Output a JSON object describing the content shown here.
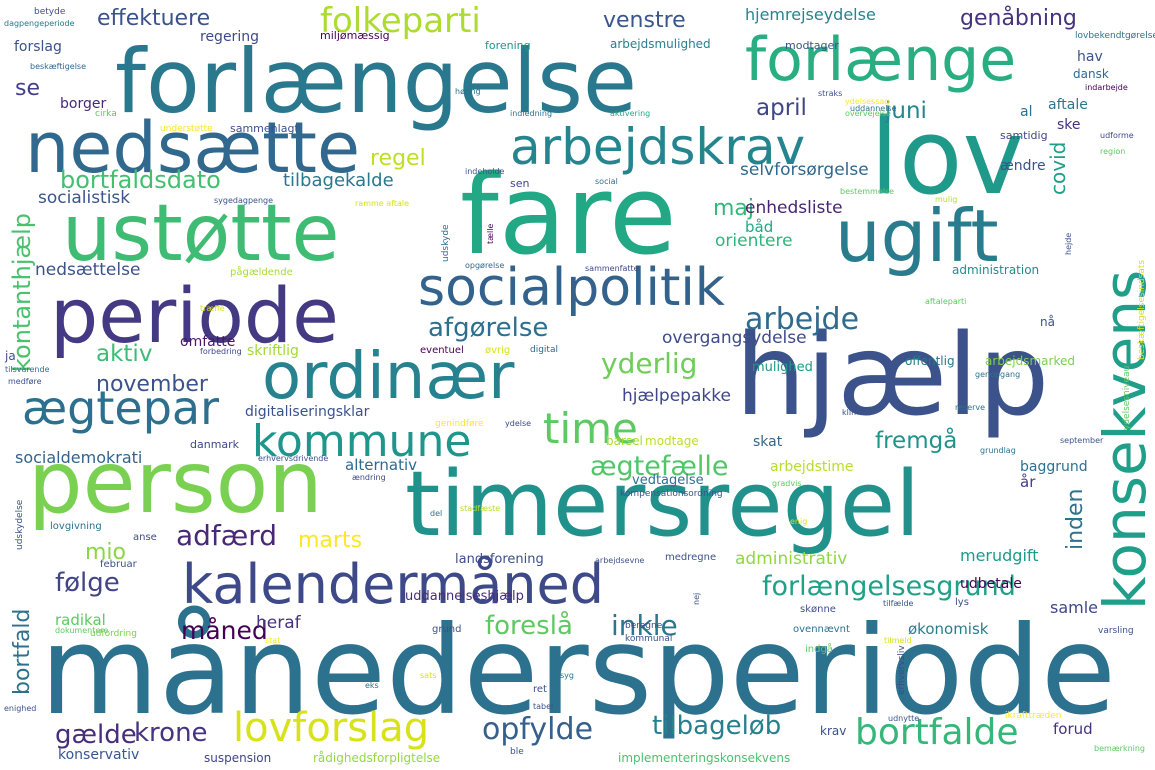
{
  "words": [
    {
      "text": "månedersperiode",
      "color": "#2c728e"
    },
    {
      "text": "forlængelse",
      "color": "#2a788e"
    },
    {
      "text": "fare",
      "color": "#22a884"
    },
    {
      "text": "timersregel",
      "color": "#21918c"
    },
    {
      "text": "hjælp",
      "color": "#3b528b"
    },
    {
      "text": "person",
      "color": "#7ad151"
    },
    {
      "text": "ustøtte",
      "color": "#3fbc73"
    },
    {
      "text": "lov",
      "color": "#1f9a8a"
    },
    {
      "text": "nedsætte",
      "color": "#31688e"
    },
    {
      "text": "periode",
      "color": "#443983"
    },
    {
      "text": "ugift",
      "color": "#287c8e"
    },
    {
      "text": "forlænge",
      "color": "#28ae80"
    },
    {
      "text": "ordinær",
      "color": "#26828e"
    },
    {
      "text": "socialpolitik",
      "color": "#33638d"
    },
    {
      "text": "kalendermåned",
      "color": "#3e4989"
    },
    {
      "text": "arbejdskrav",
      "color": "#25858e"
    },
    {
      "text": "konsekvens",
      "color": "#1f9e89"
    },
    {
      "text": "ægtepar",
      "color": "#2d708e"
    },
    {
      "text": "kommune",
      "color": "#1f968b"
    },
    {
      "text": "time",
      "color": "#5ec962"
    },
    {
      "text": "folkeparti",
      "color": "#addc30"
    },
    {
      "text": "lovforslag",
      "color": "#d8e219"
    },
    {
      "text": "bortfalde",
      "color": "#35b779"
    },
    {
      "text": "arbejde",
      "color": "#2f6b8e"
    },
    {
      "text": "opfylde",
      "color": "#355f8d"
    },
    {
      "text": "forlængelsesgrund",
      "color": "#1fa188"
    },
    {
      "text": "tilbageløb",
      "color": "#27808e"
    },
    {
      "text": "adfærd",
      "color": "#482878"
    },
    {
      "text": "afgørelse",
      "color": "#2e6f8e"
    },
    {
      "text": "yderlig",
      "color": "#6ece58"
    },
    {
      "text": "bortfaldsdato",
      "color": "#44bf70"
    },
    {
      "text": "kontanthjælp",
      "color": "#4ac16d"
    },
    {
      "text": "ægtefælle",
      "color": "#52c569"
    },
    {
      "text": "gælde",
      "color": "#472d7b"
    },
    {
      "text": "krone",
      "color": "#463480"
    },
    {
      "text": "følge",
      "color": "#414487"
    },
    {
      "text": "inkle",
      "color": "#2a768e"
    },
    {
      "text": "foreslå",
      "color": "#5ec962"
    },
    {
      "text": "måned",
      "color": "#440154"
    },
    {
      "text": "effektuere",
      "color": "#3b528b"
    },
    {
      "text": "genåbning",
      "color": "#46327e"
    },
    {
      "text": "venstre",
      "color": "#39568c"
    },
    {
      "text": "april",
      "color": "#404588"
    },
    {
      "text": "juni",
      "color": "#24868e"
    },
    {
      "text": "regel",
      "color": "#bddf26"
    },
    {
      "text": "maj",
      "color": "#35b779"
    },
    {
      "text": "aktiv",
      "color": "#3dbc74"
    },
    {
      "text": "november",
      "color": "#3b528b"
    },
    {
      "text": "marts",
      "color": "#fde725"
    },
    {
      "text": "mio",
      "color": "#8bd646"
    },
    {
      "text": "fremgå",
      "color": "#20928c"
    },
    {
      "text": "inden",
      "color": "#2c738e"
    },
    {
      "text": "bortfald",
      "color": "#2c728e"
    },
    {
      "text": "se",
      "color": "#433e85"
    },
    {
      "text": "covid",
      "color": "#1f9e89"
    },
    {
      "text": "tilbagekalde",
      "color": "#2a788e"
    },
    {
      "text": "socialistisk",
      "color": "#3a548c"
    },
    {
      "text": "nedsættelse",
      "color": "#3b528b"
    },
    {
      "text": "enhedsliste",
      "color": "#482475"
    },
    {
      "text": "orientere",
      "color": "#2fb47c"
    },
    {
      "text": "selvforsørgelse",
      "color": "#31688e"
    },
    {
      "text": "hjemrejseydelse",
      "color": "#25848e"
    },
    {
      "text": "overgangsydelse",
      "color": "#3e4a89"
    },
    {
      "text": "hjælpepakke",
      "color": "#404688"
    },
    {
      "text": "omfatte",
      "color": "#48186a"
    },
    {
      "text": "skriftlig",
      "color": "#a2da37"
    },
    {
      "text": "alternativ",
      "color": "#31688e"
    },
    {
      "text": "socialdemokrati",
      "color": "#33638d"
    },
    {
      "text": "digitaliseringsklar",
      "color": "#3b528b"
    },
    {
      "text": "administrativ",
      "color": "#8fd744"
    },
    {
      "text": "merudgift",
      "color": "#1f9a8a"
    },
    {
      "text": "landsforening",
      "color": "#3d4d8a"
    },
    {
      "text": "uddannelseshjælp",
      "color": "#472c7a"
    },
    {
      "text": "heraf",
      "color": "#46327e"
    },
    {
      "text": "radikal",
      "color": "#5ec962"
    },
    {
      "text": "økonomisk",
      "color": "#277f8e"
    },
    {
      "text": "samle",
      "color": "#404688"
    },
    {
      "text": "konservativ",
      "color": "#38588c"
    },
    {
      "text": "suspension",
      "color": "#404588"
    },
    {
      "text": "rådighedsforpligtelse",
      "color": "#95d840"
    },
    {
      "text": "implementeringskonsekvens",
      "color": "#4ac16d"
    },
    {
      "text": "forud",
      "color": "#46337f"
    },
    {
      "text": "krav",
      "color": "#3b528b"
    },
    {
      "text": "udbetale",
      "color": "#440154"
    },
    {
      "text": "arbejdstime",
      "color": "#b5de2b"
    },
    {
      "text": "baggrund",
      "color": "#2d708e"
    },
    {
      "text": "år",
      "color": "#433e85"
    },
    {
      "text": "skat",
      "color": "#31688e"
    },
    {
      "text": "vedtagelse",
      "color": "#2d708e"
    },
    {
      "text": "modtage",
      "color": "#bddf26"
    },
    {
      "text": "barsel",
      "color": "#a8db34"
    },
    {
      "text": "danmark",
      "color": "#3e4989"
    },
    {
      "text": "mulighed",
      "color": "#1f998a"
    },
    {
      "text": "offentlig",
      "color": "#2a788e"
    },
    {
      "text": "arbejdsmarked",
      "color": "#7ad151"
    },
    {
      "text": "nå",
      "color": "#3b528b"
    },
    {
      "text": "administration",
      "color": "#238a8d"
    },
    {
      "text": "båd",
      "color": "#22a884"
    },
    {
      "text": "ændre",
      "color": "#3b528b"
    },
    {
      "text": "samtidig",
      "color": "#404688"
    },
    {
      "text": "aftale",
      "color": "#2a788e"
    },
    {
      "text": "ske",
      "color": "#46327e"
    },
    {
      "text": "hav",
      "color": "#3b528b"
    },
    {
      "text": "dansk",
      "color": "#31688e"
    },
    {
      "text": "al",
      "color": "#2d708e"
    },
    {
      "text": "regering",
      "color": "#3e4989"
    },
    {
      "text": "borger",
      "color": "#482878"
    },
    {
      "text": "forslag",
      "color": "#3b528b"
    },
    {
      "text": "forening",
      "color": "#20928c"
    },
    {
      "text": "arbejdsmulighed",
      "color": "#277f8e"
    },
    {
      "text": "miljømæssig",
      "color": "#440154"
    },
    {
      "text": "modtager",
      "color": "#3b528b"
    },
    {
      "text": "sammenlagt",
      "color": "#3b528b"
    },
    {
      "text": "lovbekendtgørelse",
      "color": "#2c728e"
    },
    {
      "text": "dagpengeperiode",
      "color": "#2a788e"
    },
    {
      "text": "betyde",
      "color": "#3b528b"
    },
    {
      "text": "beskæftigelse",
      "color": "#31688e"
    },
    {
      "text": "cirka",
      "color": "#5ec962"
    },
    {
      "text": "understøtte",
      "color": "#fde725"
    },
    {
      "text": "indarbejde",
      "color": "#440154"
    },
    {
      "text": "sen",
      "color": "#404688"
    },
    {
      "text": "social",
      "color": "#2d708e"
    },
    {
      "text": "indeholde",
      "color": "#3b528b"
    },
    {
      "text": "indledning",
      "color": "#2c728e"
    },
    {
      "text": "aktivering",
      "color": "#22a884"
    },
    {
      "text": "ramme aftale",
      "color": "#d8e219"
    },
    {
      "text": "sygedagpenge",
      "color": "#3b528b"
    },
    {
      "text": "pågældende",
      "color": "#a8db34"
    },
    {
      "text": "udskyde",
      "color": "#2d708e"
    },
    {
      "text": "opgørelse",
      "color": "#31688e"
    },
    {
      "text": "sammenfatte",
      "color": "#3e4989"
    },
    {
      "text": "bestemmelse",
      "color": "#5ec962"
    },
    {
      "text": "mulig",
      "color": "#b5de2b"
    },
    {
      "text": "tælle",
      "color": "#440154"
    },
    {
      "text": "hejde",
      "color": "#3b528b"
    },
    {
      "text": "træffe",
      "color": "#d8e219"
    },
    {
      "text": "forbedring",
      "color": "#3e4989"
    },
    {
      "text": "eventuel",
      "color": "#440154"
    },
    {
      "text": "øvrig",
      "color": "#d8e219"
    },
    {
      "text": "digital",
      "color": "#31688e"
    },
    {
      "text": "ja",
      "color": "#3b528b"
    },
    {
      "text": "medføre",
      "color": "#3b528b"
    },
    {
      "text": "tilsvarende",
      "color": "#2d708e"
    },
    {
      "text": "genindføre",
      "color": "#fde725"
    },
    {
      "text": "ydelse",
      "color": "#3e4989"
    },
    {
      "text": "erhvervsdrivende",
      "color": "#3b528b"
    },
    {
      "text": "ændring",
      "color": "#3e4989"
    },
    {
      "text": "kompensationsordning",
      "color": "#3b528b"
    },
    {
      "text": "gradvis",
      "color": "#5ec962"
    },
    {
      "text": "grundlag",
      "color": "#2c728e"
    },
    {
      "text": "september",
      "color": "#3b528b"
    },
    {
      "text": "klima",
      "color": "#3b528b"
    },
    {
      "text": "reserve",
      "color": "#2d708e"
    },
    {
      "text": "genopgang",
      "color": "#2c728e"
    },
    {
      "text": "lovgivning",
      "color": "#2c728e"
    },
    {
      "text": "anse",
      "color": "#3e4989"
    },
    {
      "text": "februar",
      "color": "#3b528b"
    },
    {
      "text": "udfordring",
      "color": "#7ad151"
    },
    {
      "text": "stat",
      "color": "#fde725"
    },
    {
      "text": "arbejdsevne",
      "color": "#3b528b"
    },
    {
      "text": "medregne",
      "color": "#3b528b"
    },
    {
      "text": "enig",
      "color": "#d8e219"
    },
    {
      "text": "del",
      "color": "#2d708e"
    },
    {
      "text": "stadfæste",
      "color": "#b5de2b"
    },
    {
      "text": "grund",
      "color": "#3b528b"
    },
    {
      "text": "kommunal",
      "color": "#3b528b"
    },
    {
      "text": "beregne",
      "color": "#3e4989"
    },
    {
      "text": "skønne",
      "color": "#3b528b"
    },
    {
      "text": "ovennævnt",
      "color": "#2d708e"
    },
    {
      "text": "indgå",
      "color": "#5ec962"
    },
    {
      "text": "tilfælde",
      "color": "#3b528b"
    },
    {
      "text": "lys",
      "color": "#3b528b"
    },
    {
      "text": "varsling",
      "color": "#3b528b"
    },
    {
      "text": "ikrafttræden",
      "color": "#fde725"
    },
    {
      "text": "bemærkning",
      "color": "#5ec962"
    },
    {
      "text": "udnytte",
      "color": "#3b528b"
    },
    {
      "text": "ret",
      "color": "#3b528b"
    },
    {
      "text": "tabel",
      "color": "#3b528b"
    },
    {
      "text": "ble",
      "color": "#3b528b"
    },
    {
      "text": "eks",
      "color": "#2d708e"
    },
    {
      "text": "enighed",
      "color": "#3b528b"
    },
    {
      "text": "dokumentere",
      "color": "#5ec962"
    },
    {
      "text": "erhvervsliv",
      "color": "#3e4989"
    },
    {
      "text": "nej",
      "color": "#3b528b"
    },
    {
      "text": "sats",
      "color": "#d8e219"
    },
    {
      "text": "udskydelse",
      "color": "#3b528b"
    },
    {
      "text": "ydelsessag",
      "color": "#fde725"
    },
    {
      "text": "overvejelse",
      "color": "#5ec962"
    },
    {
      "text": "udforme",
      "color": "#3e4989"
    },
    {
      "text": "region",
      "color": "#5ec962"
    },
    {
      "text": "ydelsesniveau",
      "color": "#5ec962"
    },
    {
      "text": "beskæftigelsesindsats",
      "color": "#d8e219"
    },
    {
      "text": "aftaleparti",
      "color": "#5ec962"
    },
    {
      "text": "høring",
      "color": "#2c728e"
    },
    {
      "text": "straks",
      "color": "#3b528b"
    },
    {
      "text": "uddannelse",
      "color": "#2d708e"
    },
    {
      "text": "derover",
      "color": "#3b528b"
    },
    {
      "text": "syg",
      "color": "#2c728e"
    },
    {
      "text": "tilmeld",
      "color": "#d8e219"
    }
  ]
}
